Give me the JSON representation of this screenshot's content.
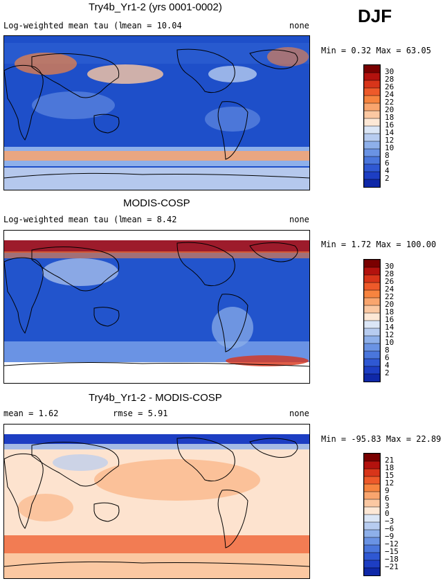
{
  "season": "DJF",
  "panels": [
    {
      "title": "Try4b_Yr1-2 (yrs 0001-0002)",
      "variable": "Log-weighted mean tau (liquid)",
      "mean": "mean =   10.04",
      "units": "none",
      "minmax": "Min =    0.32 Max =   63.05",
      "colorbar": {
        "labels": [
          "30",
          "28",
          "26",
          "24",
          "22",
          "20",
          "18",
          "16",
          "14",
          "12",
          "10",
          "8",
          "6",
          "4",
          "2"
        ],
        "colors": [
          "#7a0000",
          "#b3120e",
          "#d8351a",
          "#ee5a2a",
          "#f7843f",
          "#f9a56e",
          "#fbc8a2",
          "#fde8d6",
          "#dbe6f6",
          "#b7ccf0",
          "#8eb0ea",
          "#6a93e4",
          "#4a76dc",
          "#2f58d3",
          "#1d3ec3",
          "#0f28a8"
        ],
        "base_color": "#1e4fc9"
      }
    },
    {
      "title": "MODIS-COSP",
      "variable": "Log-weighted mean tau (liquid)",
      "mean": "mean =    8.42",
      "units": "none",
      "minmax": "Min =    1.72 Max =  100.00",
      "colorbar": {
        "labels": [
          "30",
          "28",
          "26",
          "24",
          "22",
          "20",
          "18",
          "16",
          "14",
          "12",
          "10",
          "8",
          "6",
          "4",
          "2"
        ],
        "colors": [
          "#7a0000",
          "#b3120e",
          "#d8351a",
          "#ee5a2a",
          "#f7843f",
          "#f9a56e",
          "#fbc8a2",
          "#fde8d6",
          "#dbe6f6",
          "#b7ccf0",
          "#8eb0ea",
          "#6a93e4",
          "#4a76dc",
          "#2f58d3",
          "#1d3ec3",
          "#0f28a8"
        ],
        "base_color": "#2254cc"
      }
    },
    {
      "title": "Try4b_Yr1-2 - MODIS-COSP",
      "mean": "mean =    1.62",
      "rmse": "rmse =    5.91",
      "units": "none",
      "minmax": "Min =  -95.83 Max =   22.89",
      "colorbar": {
        "labels": [
          "21",
          "18",
          "15",
          "12",
          "9",
          "6",
          "3",
          "0",
          "−3",
          "−6",
          "−9",
          "−12",
          "−15",
          "−18",
          "−21"
        ],
        "colors": [
          "#7a0000",
          "#b3120e",
          "#d8351a",
          "#ee5a2a",
          "#f7843f",
          "#f9a56e",
          "#fbc8a2",
          "#fde8d6",
          "#dbe6f6",
          "#b7ccf0",
          "#8eb0ea",
          "#6a93e4",
          "#4a76dc",
          "#2f58d3",
          "#1d3ec3",
          "#0f28a8"
        ],
        "base_color": "#fde3cf"
      }
    }
  ]
}
